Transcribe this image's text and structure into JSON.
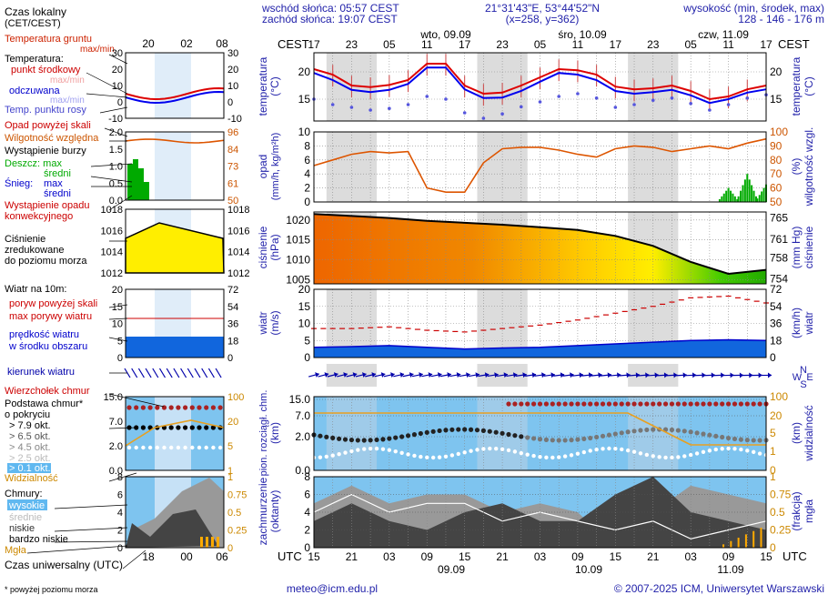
{
  "header": {
    "sunrise": "wschód słońca: 05:57 CEST",
    "sunset": "zachód słońca: 19:07 CEST",
    "coords": "21°31'43\"E, 53°44'52\"N",
    "grid": "(x=258,  y=362)",
    "elev_label": "wysokość (min, środek, max)",
    "elev_value": "128 - 146 - 176 m",
    "days": [
      "wto, 09.09",
      "śro, 10.09",
      "czw, 11.09"
    ],
    "cest": "CEST",
    "cest_hours": [
      "17",
      "23",
      "05",
      "11",
      "17",
      "23",
      "05",
      "11",
      "17",
      "23",
      "05",
      "11",
      "17"
    ]
  },
  "footer": {
    "utc": "UTC",
    "utc_hours": [
      "15",
      "21",
      "03",
      "09",
      "15",
      "21",
      "03",
      "09",
      "15",
      "21",
      "03",
      "09",
      "15"
    ],
    "dates": [
      "09.09",
      "10.09",
      "11.09"
    ],
    "email": "meteo@icm.edu.pl",
    "copyright": "© 2007-2025 ICM, Uniwersytet Warszawski",
    "footnote": "* powyżej poziomu morza"
  },
  "legend": {
    "local_time": "Czas lokalny",
    "local_time2": "(CET/CEST)",
    "local_hours": [
      "20",
      "02",
      "08"
    ],
    "utc_label": "Czas uniwersalny (UTC)",
    "utc_hours": [
      "18",
      "00",
      "06"
    ],
    "t_soil": "Temperatura gruntu",
    "t_soil_mm": "max/min",
    "t_title": "Temperatura:",
    "t_mid": "punkt środkowy",
    "t_mm": "max/min",
    "t_perc": "odczuwana",
    "t_perc_mm": "max/min",
    "t_dew": "Temp. punktu rosy",
    "rain_over": "Opad powyżej skali",
    "rh": "Wilgotność względna",
    "storm": "Wystąpienie burzy",
    "rain": "Deszcz: max",
    "rain_mid": "średni",
    "snow": "Śnieg:",
    "snow_max": "max",
    "snow_mid": "średni",
    "conv": "Wystąpienie opadu",
    "conv2": "konwekcyjnego",
    "slp1": "Ciśnienie",
    "slp2": "zredukowane",
    "slp3": "do poziomu morza",
    "wind_title": "Wiatr na 10m:",
    "gust_over": "poryw powyżej skali",
    "gust_max": "max porywy wiatru",
    "wind_avg": "prędkość wiatru",
    "wind_avg2": "w środku obszaru",
    "wind_dir": "kierunek wiatru",
    "cb_top": "Wierzchołek chmur",
    "cb_base": "Podstawa chmur*",
    "cb_base2": "o pokryciu",
    "cb_okt": [
      "> 7.9 okt.",
      "> 6.5 okt.",
      "> 4.5 okt.",
      "> 2.5 okt.",
      "> 0.1 okt."
    ],
    "vis": "Widzialność",
    "clouds": "Chmury:",
    "cl_high": "wysokie",
    "cl_mid": "średnie",
    "cl_low": "niskie",
    "cl_vlow": "bardzo niskie",
    "fog": "Mgła",
    "t_ticks": [
      "30",
      "20",
      "10",
      "0",
      "-10"
    ],
    "t_ticks_r": [
      "30",
      "20",
      "10",
      "0",
      "-10"
    ],
    "rh_ticks": [
      "2.0",
      "1.5",
      "1.0",
      "0.5",
      "0.0"
    ],
    "rh_ticks_r": [
      "96",
      "84",
      "73",
      "61",
      "50"
    ],
    "p_ticks": [
      "1018",
      "1016",
      "1014",
      "1012"
    ],
    "w_ticks": [
      "20",
      "15",
      "10",
      "5",
      "0"
    ],
    "w_ticks_r": [
      "72",
      "54",
      "36",
      "18",
      "0"
    ],
    "cb_ticks": [
      "15.0",
      "7.0",
      "2.0",
      "0.0"
    ],
    "cb_ticks_r": [
      "100",
      "20",
      "5",
      "1",
      "0"
    ],
    "cl_ticks": [
      "8",
      "6",
      "4",
      "2",
      "0"
    ],
    "cl_ticks_r": [
      "1",
      "0.75",
      "0.5",
      "0.25",
      "0"
    ]
  },
  "panels": {
    "temp": {
      "left_label": "temperatura",
      "left_unit": "(°C)",
      "right_label": "temperatura",
      "right_unit": "(°C)",
      "ticks": [
        "20",
        "15"
      ]
    },
    "precip": {
      "left_label": "opad",
      "left_unit": "(mm/h, kg/m²h)",
      "right_label": "wilgotność wzgl.",
      "right_unit": "(%)",
      "ticks_l": [
        "10",
        "8",
        "6",
        "4",
        "2",
        "0"
      ],
      "ticks_r": [
        "100",
        "90",
        "80",
        "70",
        "60",
        "50"
      ]
    },
    "pressure": {
      "left_label": "ciśnienie",
      "left_unit": "(hPa)",
      "right_label": "ciśnienie",
      "right_unit": "(mm Hg)",
      "ticks_l": [
        "1020",
        "1015",
        "1010",
        "1005"
      ],
      "ticks_r": [
        "765",
        "761",
        "758",
        "754"
      ]
    },
    "wind": {
      "left_label": "wiatr",
      "left_unit": "(m/s)",
      "right_label": "wiatr",
      "right_unit": "(km/h)",
      "ticks_l": [
        "20",
        "15",
        "10",
        "5",
        "0"
      ],
      "ticks_r": [
        "72",
        "54",
        "36",
        "18",
        "0"
      ],
      "compass": [
        "N",
        "W",
        "E",
        "S"
      ]
    },
    "cloudbase": {
      "left_label": "pion. rozciągł. chm.",
      "left_unit": "(km)",
      "right_label": "widzialność",
      "right_unit": "(km)",
      "ticks_l": [
        "15.0",
        "7.0",
        "2.0",
        "0.0"
      ],
      "ticks_r": [
        "100",
        "20",
        "5",
        "1",
        "0"
      ]
    },
    "clouds": {
      "left_label": "zachmurzenie",
      "left_unit": "(oktanty)",
      "right_label": "mgła",
      "right_unit": "(frakcja)",
      "ticks_l": [
        "8",
        "6",
        "4",
        "2",
        "0"
      ],
      "ticks_r": [
        "1",
        "0.75",
        "0.5",
        "0.25",
        "0"
      ]
    }
  },
  "chart_data": [
    {
      "type": "line",
      "title": "",
      "ylabel": "temperatura (°C)",
      "x_hours_from_start": [
        0,
        3,
        6,
        9,
        12,
        15,
        18,
        21,
        24,
        27,
        30,
        33,
        36,
        39,
        42,
        45,
        48,
        51,
        54,
        57,
        60,
        63,
        66,
        69,
        72
      ],
      "series": [
        {
          "name": "punkt środkowy",
          "values": [
            20.5,
            19.5,
            17.5,
            17.2,
            17.6,
            18.5,
            21.5,
            21.5,
            17.5,
            16.0,
            16.2,
            17.5,
            19.0,
            20.5,
            20.3,
            19.5,
            17.3,
            16.8,
            17.0,
            17.5,
            16.5,
            15.0,
            15.5,
            16.8,
            17.5
          ]
        },
        {
          "name": "odczuwana",
          "values": [
            19.8,
            18.5,
            16.7,
            16.3,
            16.7,
            17.8,
            20.8,
            20.8,
            16.8,
            15.2,
            15.3,
            16.5,
            18.2,
            19.8,
            19.5,
            18.5,
            16.5,
            16.0,
            16.3,
            16.7,
            15.7,
            14.3,
            15.0,
            16.2,
            16.8
          ]
        },
        {
          "name": "Temp. punktu rosy",
          "values": [
            15.0,
            14.0,
            13.5,
            13.0,
            13.3,
            14.0,
            15.5,
            15.0,
            12.5,
            11.5,
            12.3,
            13.6,
            14.5,
            15.5,
            16.0,
            15.2,
            13.5,
            14.0,
            14.8,
            15.2,
            14.2,
            13.0,
            14.0,
            15.2,
            15.8
          ]
        }
      ],
      "ylim": [
        11,
        23.5
      ]
    },
    {
      "type": "line",
      "title": "",
      "ylabel": "wilgotność wzgl. (%)",
      "x_hours_from_start": [
        0,
        3,
        6,
        9,
        12,
        15,
        18,
        21,
        24,
        27,
        30,
        33,
        36,
        39,
        42,
        45,
        48,
        51,
        54,
        57,
        60,
        63,
        66,
        69,
        72
      ],
      "series": [
        {
          "name": "Wilgotność względna",
          "values": [
            76,
            80,
            84,
            86,
            85,
            86,
            60,
            57,
            57,
            78,
            88,
            89,
            89,
            87,
            84,
            82,
            88,
            90,
            89,
            86,
            88,
            90,
            88,
            92,
            95
          ]
        },
        {
          "name": "Deszcz: max",
          "values": [
            0,
            0,
            0,
            0,
            0,
            0,
            0,
            0,
            0,
            0,
            0,
            0,
            0,
            0,
            0,
            0,
            0,
            0,
            0,
            0,
            0,
            0,
            2.0,
            4.0,
            2.5
          ]
        }
      ],
      "ylim": [
        0,
        10
      ]
    },
    {
      "type": "area",
      "title": "",
      "ylabel": "ciśnienie (hPa)",
      "x_hours_from_start": [
        0,
        6,
        12,
        18,
        24,
        30,
        36,
        42,
        48,
        54,
        60,
        66,
        72
      ],
      "series": [
        {
          "name": "Ciśnienie zredukowane do poziomu morza",
          "values": [
            1021.5,
            1021.0,
            1020.5,
            1019.8,
            1019.3,
            1018.8,
            1018.2,
            1017.5,
            1016.0,
            1013.5,
            1009.5,
            1006.5,
            1007.5
          ]
        }
      ],
      "ylim": [
        1004,
        1022
      ]
    },
    {
      "type": "line",
      "title": "",
      "ylabel": "wiatr (m/s)",
      "x_hours_from_start": [
        0,
        6,
        12,
        18,
        24,
        30,
        36,
        42,
        48,
        54,
        60,
        66,
        72
      ],
      "series": [
        {
          "name": "max porywy wiatru",
          "values": [
            8.5,
            8.5,
            9.0,
            8.0,
            7.5,
            8.5,
            9.5,
            11.0,
            13.0,
            15.0,
            17.5,
            18.0,
            16.0
          ]
        },
        {
          "name": "prędkość wiatru",
          "values": [
            3.0,
            3.2,
            3.5,
            3.0,
            2.5,
            2.8,
            3.0,
            3.5,
            4.0,
            4.5,
            5.0,
            5.2,
            5.0
          ]
        }
      ],
      "ylim": [
        0,
        20
      ]
    },
    {
      "type": "line",
      "title": "",
      "ylabel": "zachmurzenie (oktanty)",
      "x_hours_from_start": [
        0,
        6,
        12,
        18,
        24,
        30,
        36,
        42,
        48,
        54,
        60,
        66,
        72
      ],
      "series": [
        {
          "name": "wysokie",
          "values": [
            4,
            6,
            4,
            5,
            5,
            3,
            4,
            3,
            2,
            3,
            1,
            2,
            3
          ]
        },
        {
          "name": "średnie",
          "values": [
            5,
            7,
            5,
            6,
            6,
            4,
            5,
            4,
            0,
            4,
            7,
            6,
            5
          ]
        },
        {
          "name": "niskie",
          "values": [
            3,
            5,
            3,
            2,
            4,
            5,
            3,
            3,
            6,
            8,
            4,
            3,
            2
          ]
        }
      ],
      "ylim": [
        0,
        8
      ]
    }
  ]
}
